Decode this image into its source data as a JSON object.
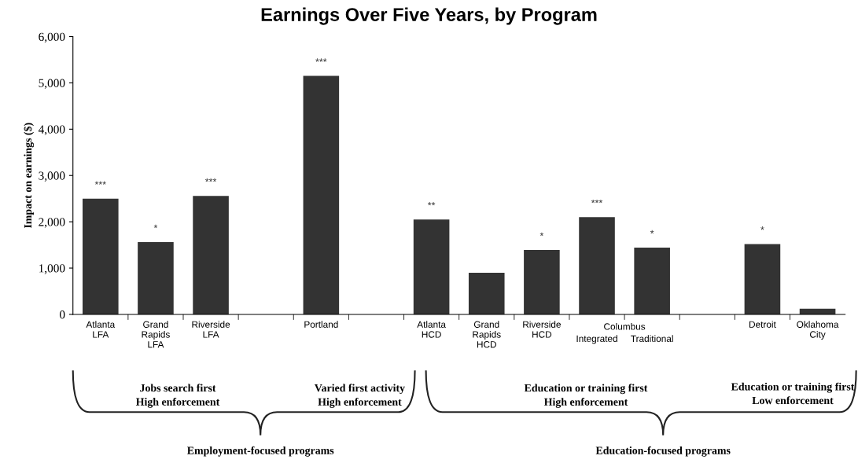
{
  "chart_data": {
    "type": "bar",
    "title": "Earnings Over Five Years, by Program",
    "ylabel": "Impact on earnings ($)",
    "categories": [
      "Atlanta\nLFA",
      "Grand\nRapids\nLFA",
      "Riverside\nLFA",
      null,
      "Portland",
      null,
      "Atlanta\nHCD",
      "Grand\nRapids\nHCD",
      "Riverside\nHCD",
      "Integrated",
      "Traditional",
      null,
      "Detroit",
      "Oklahoma\nCity"
    ],
    "values": [
      2500,
      1560,
      2560,
      null,
      5150,
      null,
      2050,
      900,
      1390,
      2100,
      1440,
      null,
      1520,
      120
    ],
    "value_labels": [
      "***",
      "*",
      "***",
      null,
      "***",
      null,
      "**",
      null,
      "*",
      "***",
      "*",
      null,
      "*",
      null
    ],
    "color": "#333333",
    "ylim": [
      0,
      6000
    ],
    "yticks": [
      {
        "value": 0,
        "label": "0"
      },
      {
        "value": 1000,
        "label": "1,000"
      },
      {
        "value": 2000,
        "label": "2,000"
      },
      {
        "value": 3000,
        "label": "3,000"
      },
      {
        "value": 4000,
        "label": "4,000"
      },
      {
        "value": 5000,
        "label": "5,000"
      },
      {
        "value": 6000,
        "label": "6,000"
      }
    ],
    "grid": false,
    "legend": false,
    "annotations": [
      "Columbus",
      "Jobs search first\nHigh enforcement",
      "Varied first activity\nHigh enforcement",
      "Education or training first\nHigh enforcement",
      "Education or training first\nLow enforcement",
      "Employment-focused programs",
      "Education-focused programs"
    ]
  }
}
